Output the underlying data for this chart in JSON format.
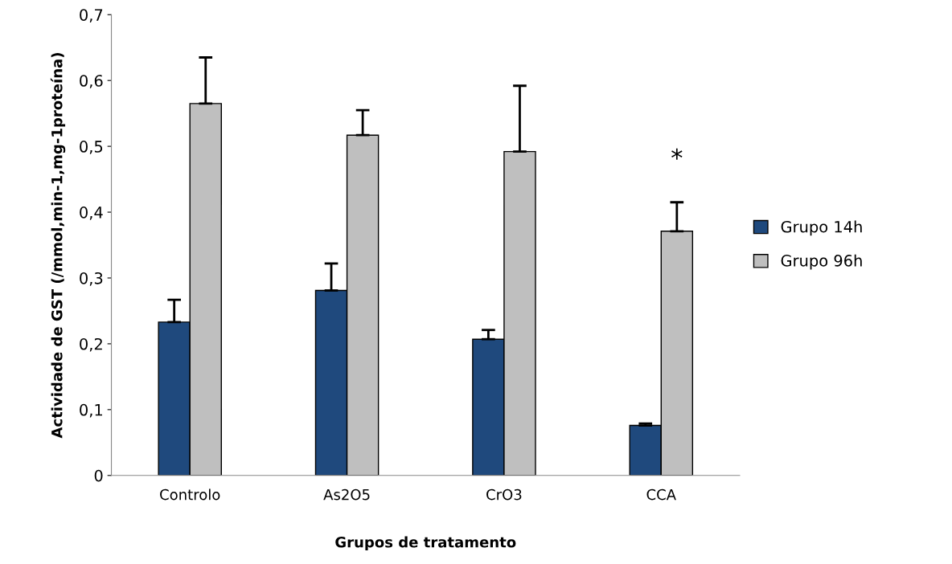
{
  "chart_data": {
    "type": "bar",
    "xlabel": "Grupos de tratamento",
    "ylabel": "Actividade de GST (/mmol,min-1,mg-1proteína)",
    "categories": [
      "Controlo",
      "As2O5",
      "CrO3",
      "CCA"
    ],
    "series": [
      {
        "name": "Grupo 14h",
        "color": "#1f497d",
        "values": [
          0.233,
          0.281,
          0.207,
          0.076
        ],
        "errors": [
          [
            0.233,
            0.267
          ],
          [
            0.281,
            0.322
          ],
          [
            0.207,
            0.221
          ],
          [
            0.076,
            0.079
          ]
        ]
      },
      {
        "name": "Grupo 96h",
        "color": "#bfbfbf",
        "values": [
          0.565,
          0.517,
          0.492,
          0.371
        ],
        "errors": [
          [
            0.565,
            0.635
          ],
          [
            0.517,
            0.555
          ],
          [
            0.492,
            0.592
          ],
          [
            0.371,
            0.415
          ]
        ]
      }
    ],
    "ylim": [
      0,
      0.7
    ],
    "yticks": [
      {
        "value": 0,
        "label": "0"
      },
      {
        "value": 0.1,
        "label": "0,1"
      },
      {
        "value": 0.2,
        "label": "0,2"
      },
      {
        "value": 0.3,
        "label": "0,3"
      },
      {
        "value": 0.4,
        "label": "0,4"
      },
      {
        "value": 0.5,
        "label": "0,5"
      },
      {
        "value": 0.6,
        "label": "0,6"
      },
      {
        "value": 0.7,
        "label": "0,7"
      }
    ],
    "annotations": [
      "*"
    ],
    "grid": false,
    "legend": "right"
  }
}
